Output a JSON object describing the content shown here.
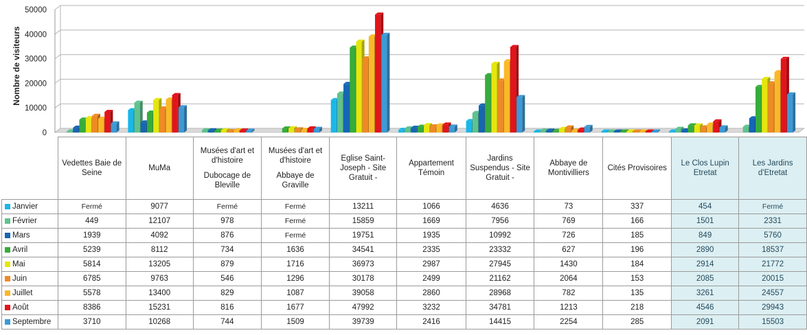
{
  "chart_data": {
    "type": "bar",
    "ylabel": "Nombre de visiteurs",
    "ylim": [
      0,
      50000
    ],
    "y_ticks": [
      "0",
      "10000",
      "20000",
      "30000",
      "40000",
      "50000"
    ],
    "grid": true,
    "legend": "table",
    "categories": [
      {
        "top": "",
        "name": "Vedettes Baie de Seine"
      },
      {
        "top": "",
        "name": "MuMa"
      },
      {
        "top": "Musées d'art et d'histoire",
        "name": "Dubocage de Bleville"
      },
      {
        "top": "Musées d'art et d'histoire",
        "name": "Abbaye de Graville"
      },
      {
        "top": "",
        "name": "Eglise Saint-Joseph - Site Gratuit -"
      },
      {
        "top": "",
        "name": "Appartement Témoin"
      },
      {
        "top": "",
        "name": "Jardins Suspendus - Site Gratuit -"
      },
      {
        "top": "",
        "name": "Abbaye de Montivilliers"
      },
      {
        "top": "",
        "name": "Cités Provisoires"
      },
      {
        "top": "",
        "name": "Le Clos Lupin Etretat"
      },
      {
        "top": "",
        "name": "Les Jardins d'Etretat"
      }
    ],
    "highlighted_categories": [
      9,
      10
    ],
    "series": [
      {
        "name": "Janvier",
        "color": "#1ab7e8",
        "values": [
          null,
          9077,
          null,
          null,
          13211,
          1066,
          4636,
          73,
          337,
          454,
          null
        ],
        "labels": [
          "Fermé",
          "9077",
          "Fermé",
          "Fermé",
          "13211",
          "1066",
          "4636",
          "73",
          "337",
          "454",
          "Fermé"
        ]
      },
      {
        "name": "Février",
        "color": "#5fc28e",
        "values": [
          449,
          12107,
          978,
          null,
          15859,
          1669,
          7956,
          769,
          166,
          1501,
          2331
        ],
        "labels": [
          "449",
          "12107",
          "978",
          "Fermé",
          "15859",
          "1669",
          "7956",
          "769",
          "166",
          "1501",
          "2331"
        ]
      },
      {
        "name": "Mars",
        "color": "#1566b4",
        "values": [
          1939,
          4092,
          876,
          null,
          19751,
          1935,
          10992,
          726,
          185,
          849,
          5760
        ],
        "labels": [
          "1939",
          "4092",
          "876",
          "Fermé",
          "19751",
          "1935",
          "10992",
          "726",
          "185",
          "849",
          "5760"
        ]
      },
      {
        "name": "Avril",
        "color": "#36ad3a",
        "values": [
          5239,
          8112,
          734,
          1636,
          34541,
          2335,
          23332,
          627,
          196,
          2890,
          18537
        ],
        "labels": [
          "5239",
          "8112",
          "734",
          "1636",
          "34541",
          "2335",
          "23332",
          "627",
          "196",
          "2890",
          "18537"
        ]
      },
      {
        "name": "Mai",
        "color": "#e6e60e",
        "values": [
          5814,
          13205,
          879,
          1716,
          36973,
          2987,
          27945,
          1430,
          184,
          2914,
          21772
        ],
        "labels": [
          "5814",
          "13205",
          "879",
          "1716",
          "36973",
          "2987",
          "27945",
          "1430",
          "184",
          "2914",
          "21772"
        ]
      },
      {
        "name": "Juin",
        "color": "#ee8a26",
        "values": [
          6785,
          9763,
          546,
          1296,
          30178,
          2499,
          21162,
          2064,
          153,
          2085,
          20015
        ],
        "labels": [
          "6785",
          "9763",
          "546",
          "1296",
          "30178",
          "2499",
          "21162",
          "2064",
          "153",
          "2085",
          "20015"
        ]
      },
      {
        "name": "Juillet",
        "color": "#f9b928",
        "values": [
          5578,
          13400,
          829,
          1087,
          39058,
          2860,
          28968,
          782,
          135,
          3261,
          24557
        ],
        "labels": [
          "5578",
          "13400",
          "829",
          "1087",
          "39058",
          "2860",
          "28968",
          "782",
          "135",
          "3261",
          "24557"
        ]
      },
      {
        "name": "Août",
        "color": "#e3141b",
        "values": [
          8386,
          15231,
          816,
          1677,
          47992,
          3232,
          34781,
          1213,
          218,
          4546,
          29943
        ],
        "labels": [
          "8386",
          "15231",
          "816",
          "1677",
          "47992",
          "3232",
          "34781",
          "1213",
          "218",
          "4546",
          "29943"
        ]
      },
      {
        "name": "Septembre",
        "color": "#3d9ad6",
        "values": [
          3710,
          10268,
          744,
          1509,
          39739,
          2416,
          14415,
          2254,
          285,
          2091,
          15503
        ],
        "labels": [
          "3710",
          "10268",
          "744",
          "1509",
          "39739",
          "2416",
          "14415",
          "2254",
          "285",
          "2091",
          "15503"
        ]
      }
    ]
  }
}
